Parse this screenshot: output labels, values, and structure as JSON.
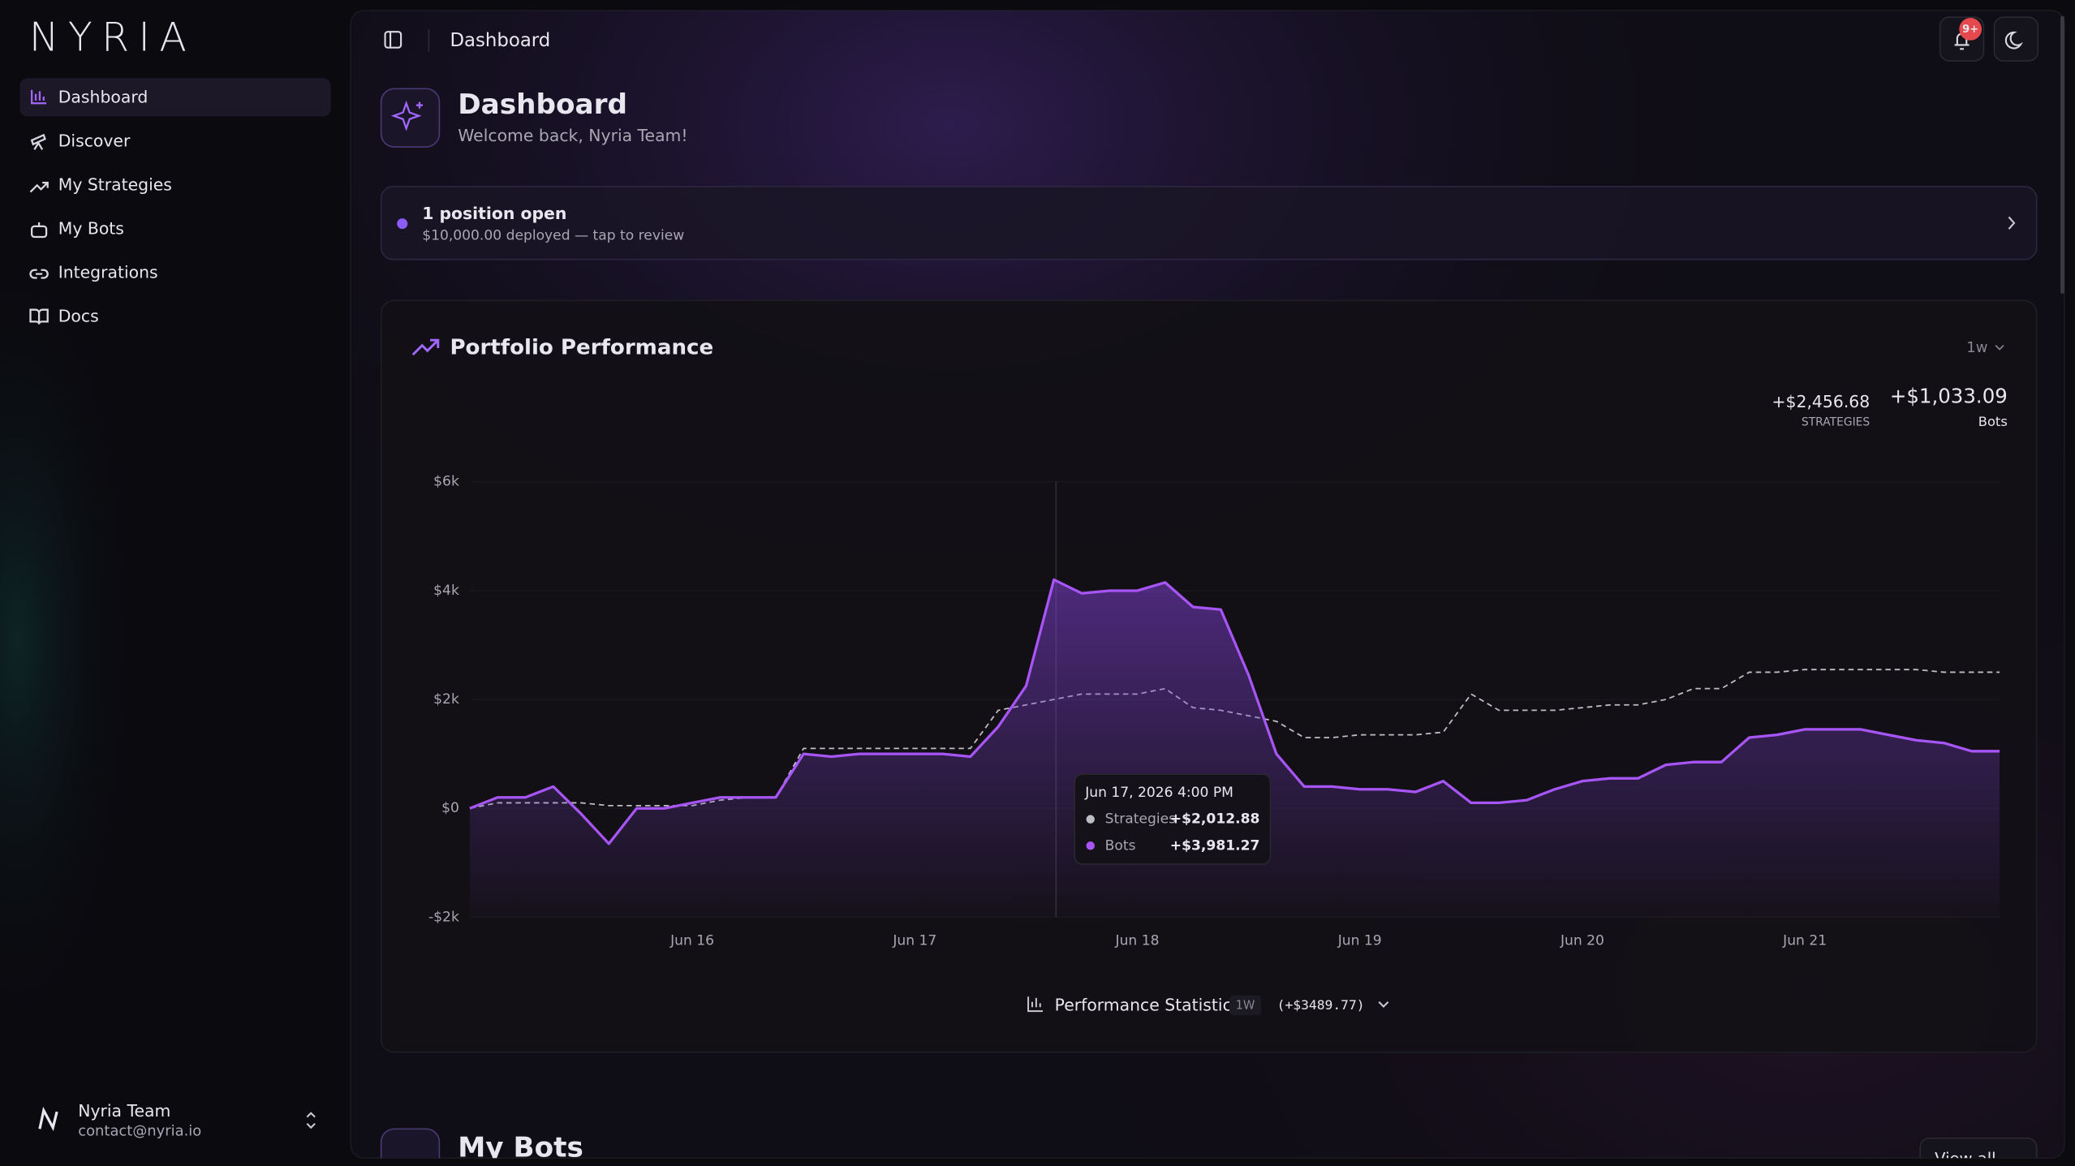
{
  "sidebar": {
    "logo": "NYRIA",
    "nav": [
      "Dashboard",
      "Discover",
      "My Strategies",
      "My Bots",
      "Integrations",
      "Docs"
    ],
    "user": {
      "name": "Nyria Team",
      "email": "contact@nyria.io"
    }
  },
  "header": {
    "breadcrumb": "Dashboard",
    "notification_badge": "9+"
  },
  "page": {
    "title": "Dashboard",
    "subtitle": "Welcome back, Nyria Team!"
  },
  "banner": {
    "title": "1 position open",
    "subtitle": "$10,000.00 deployed — tap to review"
  },
  "chart_data": {
    "type": "line",
    "title": "Portfolio Performance",
    "range": "1w",
    "summary": [
      {
        "value": "+$2,456.68",
        "label": "STRATEGIES"
      },
      {
        "value": "+$1,033.09",
        "label": "Bots"
      }
    ],
    "xlim": [
      0,
      55
    ],
    "xticks": [
      {
        "value": 8,
        "label": "Jun 16"
      },
      {
        "value": 16,
        "label": "Jun 17"
      },
      {
        "value": 24,
        "label": "Jun 18"
      },
      {
        "value": 32,
        "label": "Jun 19"
      },
      {
        "value": 40,
        "label": "Jun 20"
      },
      {
        "value": 48,
        "label": "Jun 21"
      }
    ],
    "ylim": [
      -2000,
      6000
    ],
    "yticks": [
      {
        "value": -2000,
        "label": "-$2k"
      },
      {
        "value": 0,
        "label": "$0"
      },
      {
        "value": 2000,
        "label": "$2k"
      },
      {
        "value": 4000,
        "label": "$4k"
      },
      {
        "value": 6000,
        "label": "$6k"
      }
    ],
    "grid": true,
    "series": [
      {
        "name": "Strategies",
        "color": "#bdbdc4",
        "dashed": true,
        "values": [
          0,
          100,
          100,
          100,
          100,
          50,
          50,
          50,
          50,
          150,
          200,
          200,
          1100,
          1100,
          1100,
          1100,
          1100,
          1100,
          1100,
          1800,
          1900,
          2000,
          2100,
          2100,
          2100,
          2200,
          1850,
          1800,
          1700,
          1600,
          1300,
          1300,
          1350,
          1350,
          1350,
          1400,
          2100,
          1800,
          1800,
          1800,
          1850,
          1900,
          1900,
          2000,
          2200,
          2200,
          2500,
          2500,
          2550,
          2550,
          2550,
          2550,
          2550,
          2500,
          2500,
          2500
        ]
      },
      {
        "name": "Bots",
        "color": "#a855f7",
        "dashed": false,
        "values": [
          0,
          200,
          200,
          400,
          -100,
          -650,
          0,
          0,
          100,
          200,
          200,
          200,
          1000,
          950,
          1000,
          1000,
          1000,
          1000,
          950,
          1500,
          2250,
          4200,
          3950,
          4000,
          4000,
          4150,
          3700,
          3650,
          2450,
          1000,
          400,
          400,
          350,
          350,
          300,
          500,
          100,
          100,
          150,
          350,
          500,
          550,
          550,
          800,
          850,
          850,
          1300,
          1350,
          1450,
          1450,
          1450,
          1350,
          1250,
          1200,
          1050,
          1050
        ]
      }
    ],
    "tooltip": {
      "title": "Jun 17, 2026 4:00 PM",
      "rows": [
        {
          "name": "Strategies",
          "value": "+$2,012.88"
        },
        {
          "name": "Bots",
          "value": "+$3,981.27"
        }
      ]
    },
    "footer": {
      "label": "Performance Statistics",
      "period": "1W",
      "change": "(+$3489.77)"
    }
  },
  "bots_section": {
    "title": "My Bots",
    "link": "View all"
  }
}
